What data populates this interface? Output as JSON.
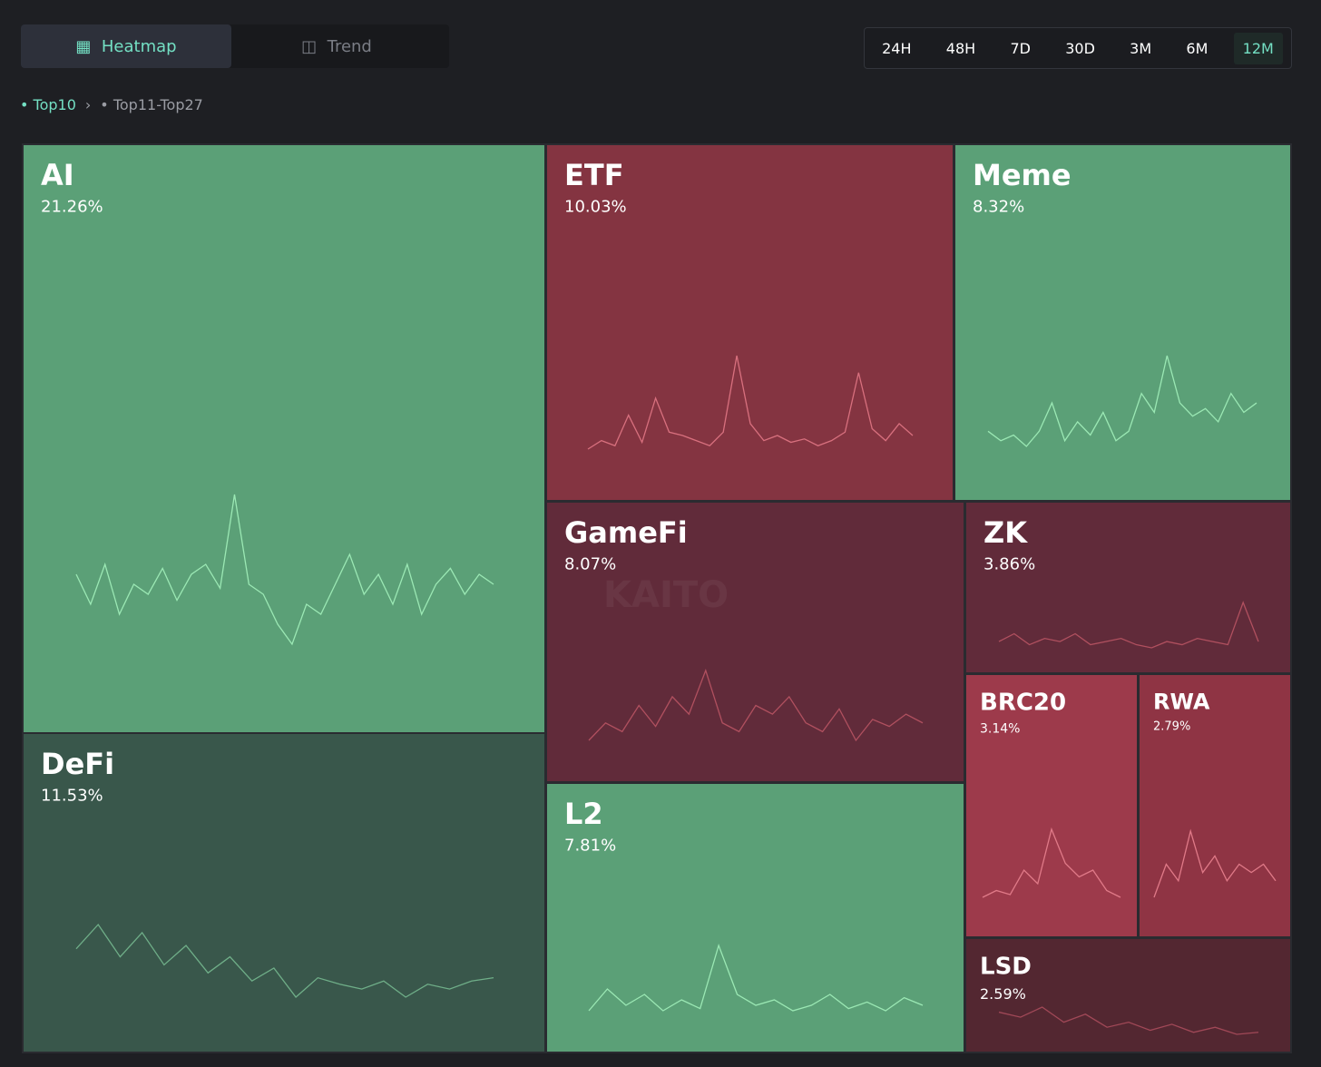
{
  "tabs": [
    "Heatmap",
    "Trend"
  ],
  "active_tab": 0,
  "time_ranges": [
    "24H",
    "48H",
    "7D",
    "30D",
    "3M",
    "6M",
    "12M"
  ],
  "active_range": 6,
  "breadcrumb": [
    "Top10",
    "Top11-Top27"
  ],
  "chart_data": {
    "type": "treemap",
    "watermark": "KAITO",
    "categories": [
      "AI",
      "DeFi",
      "ETF",
      "Meme",
      "GameFi",
      "ZK",
      "L2",
      "BRC20",
      "RWA",
      "LSD"
    ],
    "values": [
      21.26,
      11.53,
      10.03,
      8.32,
      8.07,
      3.86,
      7.81,
      3.14,
      2.79,
      2.59
    ],
    "value_labels": [
      "21.26%",
      "11.53%",
      "10.03%",
      "8.32%",
      "8.07%",
      "3.86%",
      "7.81%",
      "3.14%",
      "2.79%",
      "2.59%"
    ],
    "colors": [
      "#5ba077",
      "#39574b",
      "#843441",
      "#5ba077",
      "#612b3a",
      "#612b3a",
      "#5ba077",
      "#9d3a4b",
      "#8f3444",
      "#532731"
    ],
    "line_colors": [
      "#9be8b4",
      "#6fae88",
      "#d8707e",
      "#9be8b4",
      "#b0505f",
      "#b0505f",
      "#9be8b4",
      "#e07a88",
      "#e07a88",
      "#a04857"
    ],
    "trends": [
      [
        55,
        40,
        60,
        35,
        50,
        45,
        58,
        42,
        55,
        60,
        48,
        95,
        50,
        45,
        30,
        20,
        40,
        35,
        50,
        65,
        45,
        55,
        40,
        60,
        35,
        50,
        58,
        45,
        55,
        50
      ],
      [
        60,
        75,
        55,
        70,
        50,
        62,
        45,
        55,
        40,
        48,
        30,
        42,
        38,
        35,
        40,
        30,
        38,
        35,
        40,
        42
      ],
      [
        10,
        15,
        12,
        30,
        14,
        40,
        20,
        18,
        15,
        12,
        20,
        65,
        25,
        15,
        18,
        14,
        16,
        12,
        15,
        20,
        55,
        22,
        15,
        25,
        18
      ],
      [
        30,
        25,
        28,
        22,
        30,
        45,
        25,
        35,
        28,
        40,
        25,
        30,
        50,
        40,
        70,
        45,
        38,
        42,
        35,
        50,
        40,
        45
      ],
      [
        30,
        40,
        35,
        50,
        38,
        55,
        45,
        70,
        40,
        35,
        50,
        45,
        55,
        40,
        35,
        48,
        30,
        42,
        38,
        45,
        40
      ],
      [
        30,
        35,
        28,
        32,
        30,
        35,
        28,
        30,
        32,
        28,
        26,
        30,
        28,
        32,
        30,
        28,
        55,
        30
      ],
      [
        30,
        50,
        35,
        45,
        30,
        40,
        32,
        90,
        45,
        35,
        40,
        30,
        35,
        45,
        32,
        38,
        30,
        42,
        35
      ],
      [
        20,
        25,
        22,
        40,
        30,
        70,
        45,
        35,
        40,
        25,
        20
      ],
      [
        20,
        40,
        30,
        60,
        35,
        45,
        30,
        40,
        35,
        40,
        30
      ],
      [
        60,
        55,
        65,
        50,
        58,
        45,
        50,
        42,
        48,
        40,
        45,
        38,
        40
      ]
    ]
  }
}
